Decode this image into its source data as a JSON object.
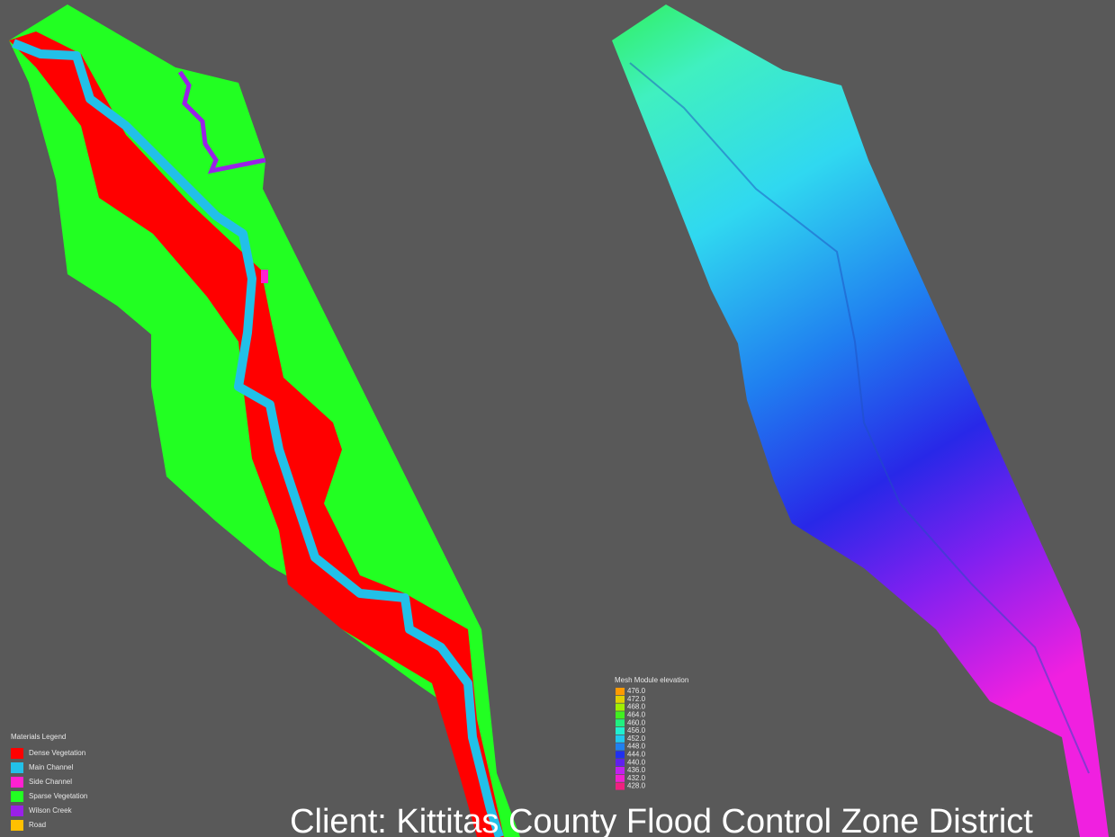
{
  "materials_legend": {
    "title": "Materials Legend",
    "items": [
      {
        "name": "Dense Vegetation",
        "color": "#ff0000"
      },
      {
        "name": "Main Channel",
        "color": "#22c0e8"
      },
      {
        "name": "Side Channel",
        "color": "#ff20d0"
      },
      {
        "name": "Sparse Vegetation",
        "color": "#22ff22"
      },
      {
        "name": "Wilson Creek",
        "color": "#9a20e8"
      },
      {
        "name": "Road",
        "color": "#ffc000"
      }
    ]
  },
  "elevation_legend": {
    "title": "Mesh Module elevation",
    "items": [
      {
        "label": "476.0",
        "color": "#ff9a00"
      },
      {
        "label": "472.0",
        "color": "#e0d000"
      },
      {
        "label": "468.0",
        "color": "#a0f000"
      },
      {
        "label": "464.0",
        "color": "#40f020"
      },
      {
        "label": "460.0",
        "color": "#20f080"
      },
      {
        "label": "456.0",
        "color": "#20f0d0"
      },
      {
        "label": "452.0",
        "color": "#20c8f0"
      },
      {
        "label": "448.0",
        "color": "#2080f0"
      },
      {
        "label": "444.0",
        "color": "#2030f0"
      },
      {
        "label": "440.0",
        "color": "#6020f0"
      },
      {
        "label": "436.0",
        "color": "#c020f0"
      },
      {
        "label": "432.0",
        "color": "#f020d0"
      },
      {
        "label": "428.0",
        "color": "#f02080"
      }
    ]
  },
  "caption": "Client: Kittitas County Flood Control Zone District"
}
